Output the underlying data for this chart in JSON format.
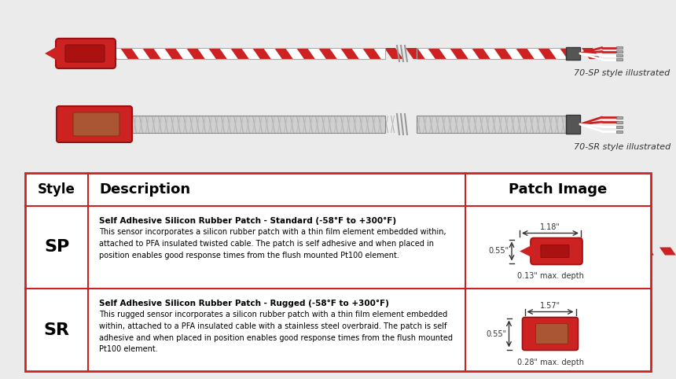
{
  "bg_color": "#ebebeb",
  "table_border_color": "#cc2222",
  "sp_title": "Self Adhesive Silicon Rubber Patch - Standard (-58°F to +300°F)",
  "sp_desc": "This sensor incorporates a silicon rubber patch with a thin film element embedded within,\nattached to PFA insulated twisted cable. The patch is self adhesive and when placed in\nposition enables good response times from the flush mounted Pt100 element.",
  "sp_dim1": "1.18\"",
  "sp_dim2": "0.55\"",
  "sp_dim3": "0.13\" max. depth",
  "sr_title": "Self Adhesive Silicon Rubber Patch - Rugged (-58°F to +300°F)",
  "sr_desc": "This rugged sensor incorporates a silicon rubber patch with a thin film element embedded\nwithin, attached to a PFA insulated cable with a stainless steel overbraid. The patch is self\nadhesive and when placed in position enables good response times from the flush mounted\nPt100 element.",
  "sr_dim1": "1.57\"",
  "sr_dim2": "0.55\"",
  "sr_dim3": "0.28\" max. depth",
  "label_70sp": "70-SP style illustrated",
  "label_70sr": "70-SR style illustrated",
  "header_style": "Style",
  "header_desc": "Description",
  "header_patch": "Patch Image",
  "sp_style": "SP",
  "sr_style": "SR"
}
